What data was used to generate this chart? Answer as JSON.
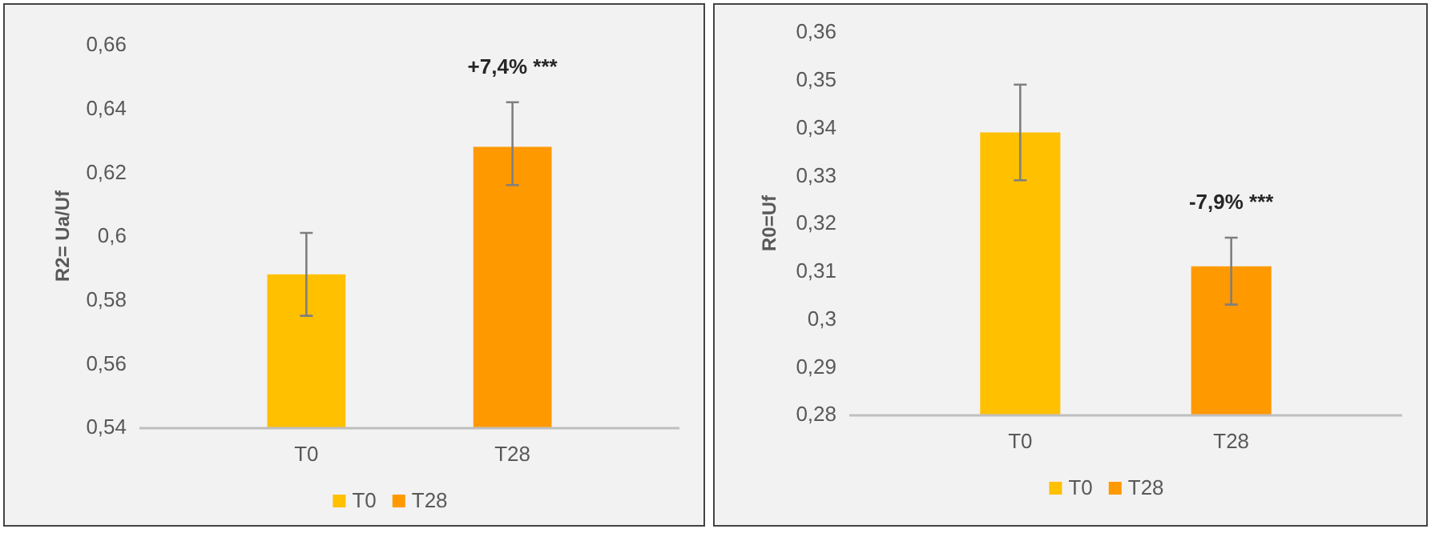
{
  "chart_data": [
    {
      "type": "bar",
      "ylabel": "R2= Ua/Uf",
      "categories": [
        "T0",
        "T28"
      ],
      "series": [
        {
          "name": "T0",
          "color": "#ffc000",
          "values": [
            0.588,
            null
          ],
          "errors": [
            [
              0.575,
              0.601
            ],
            null
          ]
        },
        {
          "name": "T28",
          "color": "#ff9900",
          "values": [
            null,
            0.628
          ],
          "errors": [
            null,
            [
              0.616,
              0.642
            ]
          ]
        }
      ],
      "ylim": [
        0.54,
        0.66
      ],
      "yticks": [
        {
          "value": 0.54,
          "label": "0,54"
        },
        {
          "value": 0.56,
          "label": "0,56"
        },
        {
          "value": 0.58,
          "label": "0,58"
        },
        {
          "value": 0.6,
          "label": "0,6"
        },
        {
          "value": 0.62,
          "label": "0,62"
        },
        {
          "value": 0.64,
          "label": "0,64"
        },
        {
          "value": 0.66,
          "label": "0,66"
        }
      ],
      "annotations": [
        "+7,4% ***"
      ],
      "legend": "bottom",
      "grid": false
    },
    {
      "type": "bar",
      "ylabel": "R0=Uf",
      "categories": [
        "T0",
        "T28"
      ],
      "series": [
        {
          "name": "T0",
          "color": "#ffc000",
          "values": [
            0.339,
            null
          ],
          "errors": [
            [
              0.329,
              0.349
            ],
            null
          ]
        },
        {
          "name": "T28",
          "color": "#ff9900",
          "values": [
            null,
            0.311
          ],
          "errors": [
            null,
            [
              0.303,
              0.317
            ]
          ]
        }
      ],
      "ylim": [
        0.28,
        0.36
      ],
      "yticks": [
        {
          "value": 0.28,
          "label": "0,28"
        },
        {
          "value": 0.29,
          "label": "0,29"
        },
        {
          "value": 0.3,
          "label": "0,3"
        },
        {
          "value": 0.31,
          "label": "0,31"
        },
        {
          "value": 0.32,
          "label": "0,32"
        },
        {
          "value": 0.33,
          "label": "0,33"
        },
        {
          "value": 0.34,
          "label": "0,34"
        },
        {
          "value": 0.35,
          "label": "0,35"
        },
        {
          "value": 0.36,
          "label": "0,36"
        }
      ],
      "annotations": [
        "-7,9% ***"
      ],
      "legend": "bottom",
      "grid": false
    }
  ]
}
